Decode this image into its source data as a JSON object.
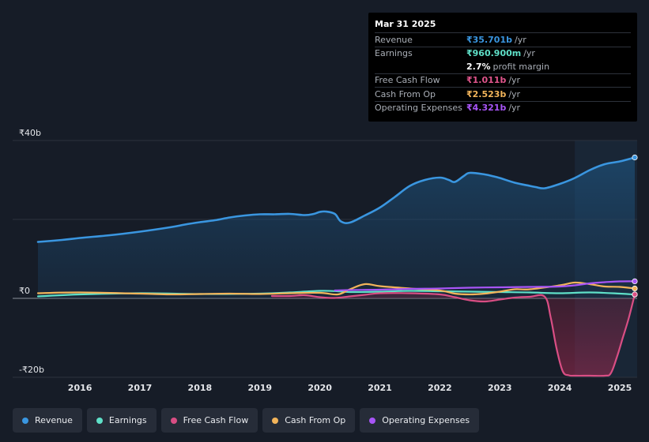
{
  "tooltip": {
    "date": "Mar 31 2025",
    "rows": [
      {
        "label": "Revenue",
        "value": "₹35.701b",
        "unit": "/yr",
        "color": "#3a96e0"
      },
      {
        "label": "Earnings",
        "value": "₹960.900m",
        "unit": "/yr",
        "color": "#5fe0c8"
      },
      {
        "label": "",
        "value": "2.7%",
        "unit": "profit margin",
        "color": "#ffffff"
      },
      {
        "label": "Free Cash Flow",
        "value": "₹1.011b",
        "unit": "/yr",
        "color": "#e0558c"
      },
      {
        "label": "Cash From Op",
        "value": "₹2.523b",
        "unit": "/yr",
        "color": "#f2b45a"
      },
      {
        "label": "Operating Expenses",
        "value": "₹4.321b",
        "unit": "/yr",
        "color": "#a855f7"
      }
    ]
  },
  "legend": [
    {
      "label": "Revenue",
      "color": "#3a96e0"
    },
    {
      "label": "Earnings",
      "color": "#5fe0c8"
    },
    {
      "label": "Free Cash Flow",
      "color": "#d94e84"
    },
    {
      "label": "Cash From Op",
      "color": "#f2b45a"
    },
    {
      "label": "Operating Expenses",
      "color": "#a855f7"
    }
  ],
  "chart_data": {
    "type": "line",
    "title": "",
    "ylim": [
      -20,
      40
    ],
    "xlim": [
      2015.3,
      2025.25
    ],
    "y_ticks": [
      {
        "value": 40,
        "label": "₹40b"
      },
      {
        "value": 0,
        "label": "₹0"
      },
      {
        "value": -20,
        "label": "-₹20b"
      }
    ],
    "x_ticks": [
      {
        "value": 2016,
        "label": "2016"
      },
      {
        "value": 2017,
        "label": "2017"
      },
      {
        "value": 2018,
        "label": "2018"
      },
      {
        "value": 2019,
        "label": "2019"
      },
      {
        "value": 2020,
        "label": "2020"
      },
      {
        "value": 2021,
        "label": "2021"
      },
      {
        "value": 2022,
        "label": "2022"
      },
      {
        "value": 2023,
        "label": "2023"
      },
      {
        "value": 2024,
        "label": "2024"
      },
      {
        "value": 2025,
        "label": "2025"
      }
    ],
    "highlight_from": 2024.25,
    "series": [
      {
        "name": "Revenue",
        "color": "#3a96e0",
        "fill": true,
        "x": [
          2015.3,
          2015.7,
          2016.0,
          2016.5,
          2017.0,
          2017.5,
          2017.75,
          2018.0,
          2018.25,
          2018.5,
          2018.75,
          2019.0,
          2019.25,
          2019.5,
          2019.75,
          2019.9,
          2020.0,
          2020.1,
          2020.25,
          2020.35,
          2020.5,
          2020.75,
          2021.0,
          2021.25,
          2021.5,
          2021.75,
          2022.0,
          2022.15,
          2022.25,
          2022.4,
          2022.5,
          2022.75,
          2022.9,
          2023.0,
          2023.25,
          2023.5,
          2023.6,
          2023.75,
          2024.0,
          2024.25,
          2024.5,
          2024.75,
          2025.0,
          2025.25
        ],
        "y": [
          14.3,
          14.8,
          15.3,
          16.0,
          16.9,
          18.0,
          18.7,
          19.3,
          19.8,
          20.5,
          21.0,
          21.3,
          21.3,
          21.4,
          21.1,
          21.4,
          21.9,
          22.0,
          21.4,
          19.5,
          19.2,
          21.0,
          23.0,
          25.7,
          28.5,
          30.0,
          30.6,
          30.0,
          29.5,
          31.0,
          31.8,
          31.4,
          30.9,
          30.5,
          29.3,
          28.5,
          28.2,
          27.9,
          29.0,
          30.5,
          32.5,
          34.0,
          34.7,
          35.7
        ]
      },
      {
        "name": "Earnings",
        "color": "#5fe0c8",
        "x": [
          2015.3,
          2016.0,
          2017.0,
          2018.0,
          2019.0,
          2019.5,
          2020.0,
          2020.3,
          2020.5,
          2021.0,
          2021.5,
          2022.0,
          2022.5,
          2023.0,
          2023.5,
          2024.0,
          2024.5,
          2025.0,
          2025.25
        ],
        "y": [
          0.5,
          1.0,
          1.3,
          1.1,
          1.2,
          1.5,
          1.9,
          1.8,
          1.6,
          1.7,
          1.9,
          1.8,
          1.7,
          1.6,
          1.5,
          1.3,
          1.5,
          1.2,
          0.96
        ]
      },
      {
        "name": "Free Cash Flow",
        "color": "#d94e84",
        "fill": true,
        "x": [
          2019.2,
          2019.5,
          2019.75,
          2020.0,
          2020.25,
          2020.5,
          2020.75,
          2021.0,
          2021.5,
          2022.0,
          2022.25,
          2022.5,
          2022.75,
          2023.0,
          2023.25,
          2023.5,
          2023.75,
          2023.85,
          2023.95,
          2024.05,
          2024.15,
          2024.25,
          2024.5,
          2024.75,
          2024.85,
          2024.95,
          2025.05,
          2025.15,
          2025.25
        ],
        "y": [
          0.6,
          0.6,
          0.8,
          0.3,
          0.1,
          0.5,
          0.9,
          1.3,
          1.3,
          1.0,
          0.3,
          -0.5,
          -0.8,
          -0.3,
          0.2,
          0.4,
          0.4,
          -5.0,
          -13.0,
          -18.5,
          -19.5,
          -19.6,
          -19.6,
          -19.6,
          -19.0,
          -15.0,
          -10.0,
          -5.0,
          1.0
        ]
      },
      {
        "name": "Cash From Op",
        "color": "#f2b45a",
        "x": [
          2015.3,
          2016.0,
          2017.0,
          2017.5,
          2018.0,
          2018.5,
          2019.0,
          2019.5,
          2020.0,
          2020.3,
          2020.5,
          2020.75,
          2021.0,
          2021.5,
          2022.0,
          2022.25,
          2022.5,
          2022.75,
          2023.0,
          2023.25,
          2023.5,
          2024.0,
          2024.25,
          2024.5,
          2024.75,
          2025.0,
          2025.25
        ],
        "y": [
          1.3,
          1.5,
          1.2,
          1.0,
          1.1,
          1.2,
          1.1,
          1.3,
          1.4,
          1.0,
          2.3,
          3.6,
          3.1,
          2.5,
          2.0,
          1.2,
          1.0,
          1.2,
          1.7,
          2.3,
          2.3,
          3.3,
          4.0,
          3.6,
          3.0,
          2.9,
          2.5
        ]
      },
      {
        "name": "Operating Expenses",
        "color": "#a855f7",
        "x": [
          2020.25,
          2020.5,
          2021.0,
          2021.5,
          2022.0,
          2022.5,
          2023.0,
          2023.5,
          2024.0,
          2024.25,
          2024.5,
          2024.75,
          2025.0,
          2025.25
        ],
        "y": [
          2.0,
          2.1,
          2.2,
          2.4,
          2.5,
          2.7,
          2.8,
          2.9,
          3.0,
          3.3,
          3.8,
          4.1,
          4.3,
          4.32
        ]
      }
    ]
  }
}
